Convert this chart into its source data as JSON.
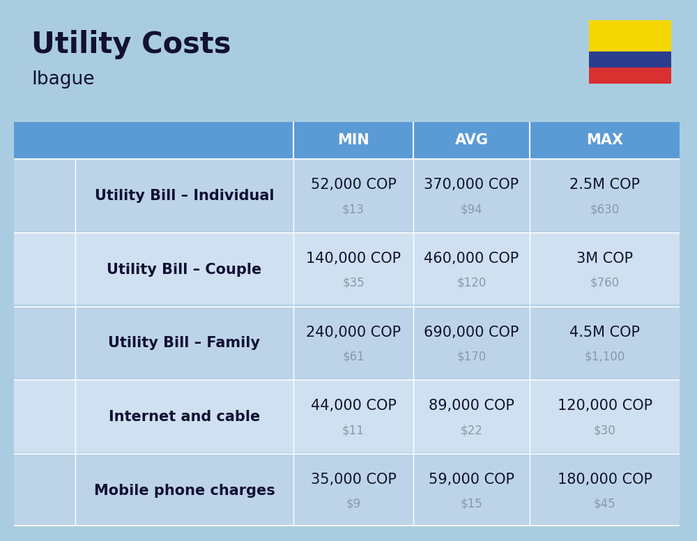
{
  "title": "Utility Costs",
  "subtitle": "Ibague",
  "background_color": "#aacce0",
  "header_bg_color": "#5b9bd5",
  "row_bg_color_odd": "#bdd4e8",
  "row_bg_color_even": "#cfe0f0",
  "header_text_color": "#ffffff",
  "label_text_color": "#111133",
  "value_text_color": "#111133",
  "subvalue_text_color": "#8899aa",
  "col_headers": [
    "MIN",
    "AVG",
    "MAX"
  ],
  "rows": [
    {
      "label": "Utility Bill – Individual",
      "min_cop": "52,000 COP",
      "min_usd": "$13",
      "avg_cop": "370,000 COP",
      "avg_usd": "$94",
      "max_cop": "2.5M COP",
      "max_usd": "$630"
    },
    {
      "label": "Utility Bill – Couple",
      "min_cop": "140,000 COP",
      "min_usd": "$35",
      "avg_cop": "460,000 COP",
      "avg_usd": "$120",
      "max_cop": "3M COP",
      "max_usd": "$760"
    },
    {
      "label": "Utility Bill – Family",
      "min_cop": "240,000 COP",
      "min_usd": "$61",
      "avg_cop": "690,000 COP",
      "avg_usd": "$170",
      "max_cop": "4.5M COP",
      "max_usd": "$1,100"
    },
    {
      "label": "Internet and cable",
      "min_cop": "44,000 COP",
      "min_usd": "$11",
      "avg_cop": "89,000 COP",
      "avg_usd": "$22",
      "max_cop": "120,000 COP",
      "max_usd": "$30"
    },
    {
      "label": "Mobile phone charges",
      "min_cop": "35,000 COP",
      "min_usd": "$9",
      "avg_cop": "59,000 COP",
      "avg_usd": "$15",
      "max_cop": "180,000 COP",
      "max_usd": "$45"
    }
  ],
  "flag_colors": [
    "#f5d800",
    "#2a3d8f",
    "#d93030"
  ],
  "title_fontsize": 30,
  "subtitle_fontsize": 19,
  "header_fontsize": 15,
  "label_fontsize": 15,
  "value_fontsize": 15,
  "subvalue_fontsize": 12,
  "icon_symbols": [
    "⚙",
    "⚙",
    "⚙",
    "⚡",
    "📱"
  ]
}
